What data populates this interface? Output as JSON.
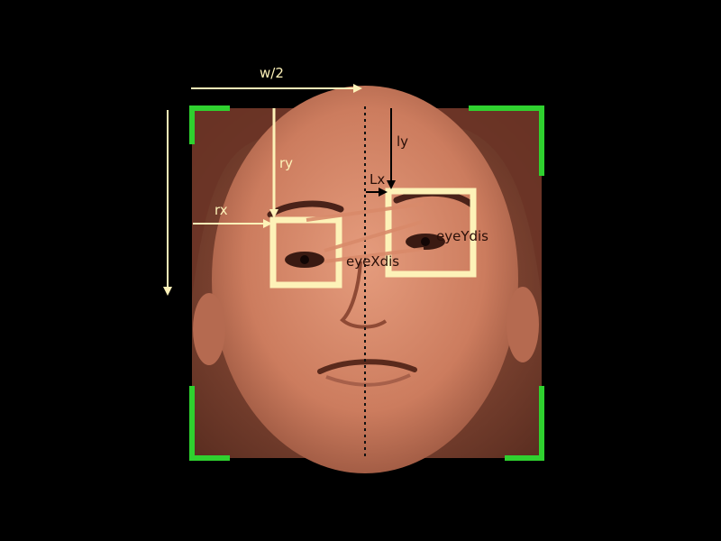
{
  "labels": {
    "half_width": "w/2",
    "ry": "ry",
    "rx": "rx",
    "ly": "ly",
    "lx": "Lx",
    "eye_x_dis": "eyeXdis",
    "eye_y_dis": "eyeYdis"
  },
  "colors": {
    "background": "#000000",
    "face_frame": "#2fd12f",
    "eye_box": "#fdf2b8",
    "arrow_light": "#fdf2b8",
    "arrow_dark": "#000000",
    "face_tint": "#d98a6a"
  },
  "icons": {
    "face": "face-photo",
    "centerline": "dotted-vertical-line"
  }
}
